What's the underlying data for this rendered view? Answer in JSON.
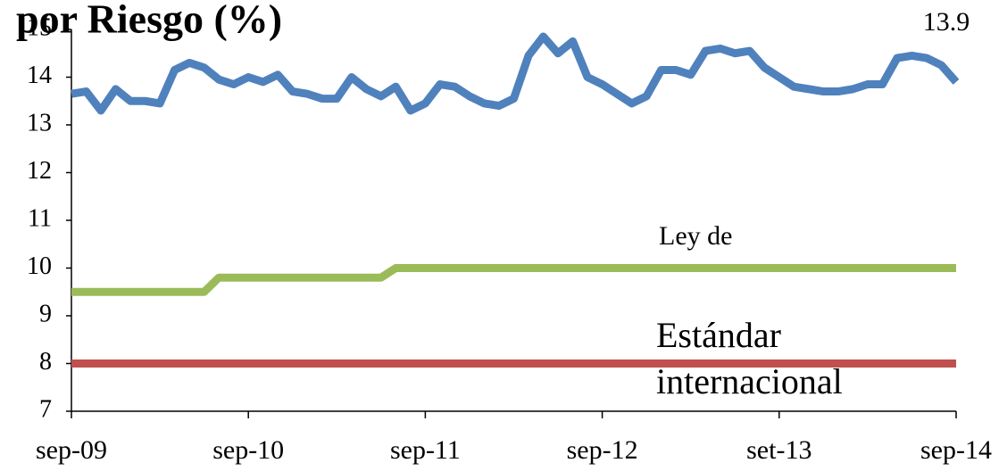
{
  "chart_data": {
    "type": "line",
    "title": "por Riesgo (%)",
    "categories": [
      "sep-09",
      null,
      null,
      null,
      null,
      null,
      null,
      null,
      null,
      null,
      null,
      null,
      "sep-10",
      null,
      null,
      null,
      null,
      null,
      null,
      null,
      null,
      null,
      null,
      null,
      "sep-11",
      null,
      null,
      null,
      null,
      null,
      null,
      null,
      null,
      null,
      null,
      null,
      "sep-12",
      null,
      null,
      null,
      null,
      null,
      null,
      null,
      null,
      null,
      null,
      null,
      "set-13",
      null,
      null,
      null,
      null,
      null,
      null,
      null,
      null,
      null,
      null,
      null,
      "sep-14"
    ],
    "series": [
      {
        "color": "#4f81bd",
        "values": [
          13.65,
          13.7,
          13.3,
          13.75,
          13.5,
          13.5,
          13.45,
          14.15,
          14.3,
          14.2,
          13.95,
          13.85,
          14.0,
          13.9,
          14.05,
          13.7,
          13.65,
          13.55,
          13.55,
          14.0,
          13.75,
          13.6,
          13.8,
          13.3,
          13.45,
          13.85,
          13.8,
          13.6,
          13.45,
          13.4,
          13.55,
          14.45,
          14.85,
          14.5,
          14.75,
          14.0,
          13.85,
          13.65,
          13.45,
          13.6,
          14.15,
          14.15,
          14.05,
          14.55,
          14.6,
          14.5,
          14.55,
          14.2,
          14.0,
          13.8,
          13.75,
          13.7,
          13.7,
          13.75,
          13.85,
          13.85,
          14.4,
          14.45,
          14.4,
          14.25,
          13.9
        ]
      },
      {
        "color": "#9bbb59",
        "values": [
          9.5,
          9.5,
          9.5,
          9.5,
          9.5,
          9.5,
          9.5,
          9.5,
          9.5,
          9.5,
          9.8,
          9.8,
          9.8,
          9.8,
          9.8,
          9.8,
          9.8,
          9.8,
          9.8,
          9.8,
          9.8,
          9.8,
          10,
          10,
          10,
          10,
          10,
          10,
          10,
          10,
          10,
          10,
          10,
          10,
          10,
          10,
          10,
          10,
          10,
          10,
          10,
          10,
          10,
          10,
          10,
          10,
          10,
          10,
          10,
          10,
          10,
          10,
          10,
          10,
          10,
          10,
          10,
          10,
          10,
          10,
          10
        ]
      },
      {
        "color": "#c0504d",
        "values": [
          8,
          8,
          8,
          8,
          8,
          8,
          8,
          8,
          8,
          8,
          8,
          8,
          8,
          8,
          8,
          8,
          8,
          8,
          8,
          8,
          8,
          8,
          8,
          8,
          8,
          8,
          8,
          8,
          8,
          8,
          8,
          8,
          8,
          8,
          8,
          8,
          8,
          8,
          8,
          8,
          8,
          8,
          8,
          8,
          8,
          8,
          8,
          8,
          8,
          8,
          8,
          8,
          8,
          8,
          8,
          8,
          8,
          8,
          8,
          8,
          8
        ]
      }
    ],
    "annotations": [
      "13.9",
      "Ley de",
      "Estándar",
      "internacional"
    ],
    "ylim": [
      7,
      15
    ],
    "yticks": [
      7,
      8,
      9,
      10,
      11,
      12,
      13,
      14,
      15
    ],
    "grid": false
  }
}
